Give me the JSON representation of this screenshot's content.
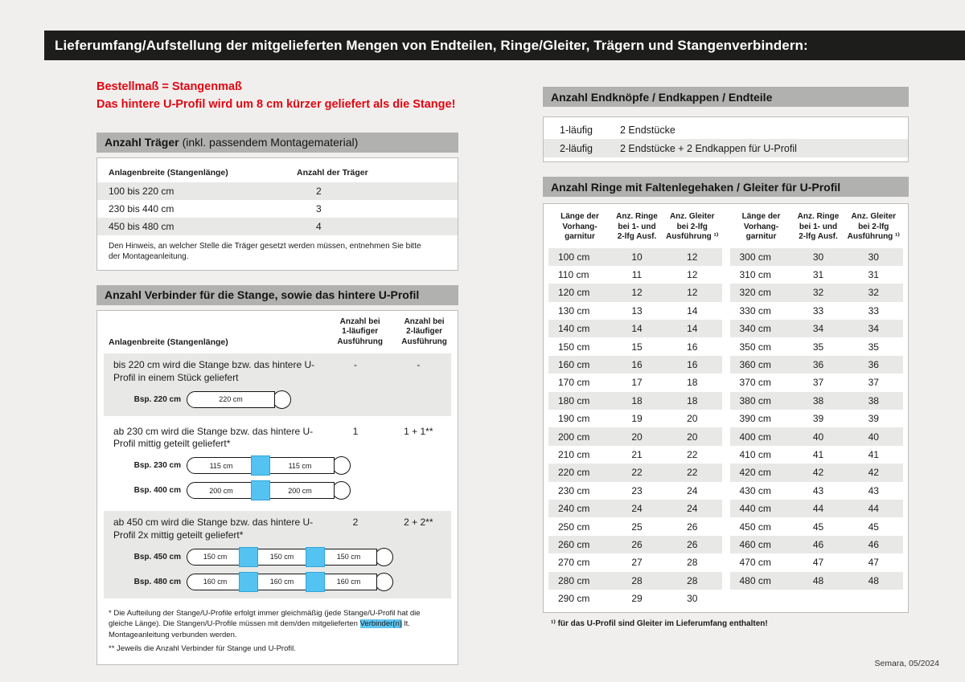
{
  "page": {
    "title": "Lieferumfang/Aufstellung der mitgelieferten Mengen von Endteilen, Ringe/Gleiter, Trägern und Stangenverbindern:",
    "footer": "Semara, 05/2024"
  },
  "notice": {
    "line1": "Bestellmaß = Stangenmaß",
    "line2": "Das hintere U-Profil wird um 8 cm kürzer geliefert als die Stange!"
  },
  "traeger": {
    "header_bold": "Anzahl Träger",
    "header_rest": "(inkl. passendem Montagematerial)",
    "col1": "Anlagenbreite (Stangenlänge)",
    "col2": "Anzahl der Träger",
    "rows": [
      {
        "range": "100 bis 220 cm",
        "count": "2"
      },
      {
        "range": "230 bis 440 cm",
        "count": "3"
      },
      {
        "range": "450 bis 480 cm",
        "count": "4"
      }
    ],
    "note": "Den Hinweis, an welcher Stelle die Träger gesetzt werden müssen, entnehmen Sie bitte der Montageanleitung."
  },
  "verbinder": {
    "header": "Anzahl Verbinder für die Stange, sowie das hintere U-Profil",
    "col1": "Anlagenbreite (Stangenlänge)",
    "col2": "Anzahl bei\n1-läufiger\nAusführung",
    "col3": "Anzahl bei\n2-läufiger\nAusführung",
    "sections": [
      {
        "text": "bis 220 cm wird die Stange bzw. das hintere U-Profil in einem Stück geliefert",
        "v1": "-",
        "v2": "-",
        "examples": [
          {
            "label": "Bsp. 220 cm",
            "segments": [
              "220 cm"
            ]
          }
        ]
      },
      {
        "text": "ab 230 cm wird die Stange bzw. das hintere U-Profil mittig geteilt geliefert*",
        "v1": "1",
        "v2": "1 + 1**",
        "examples": [
          {
            "label": "Bsp. 230 cm",
            "segments": [
              "115 cm",
              "115 cm"
            ]
          },
          {
            "label": "Bsp. 400 cm",
            "segments": [
              "200 cm",
              "200 cm"
            ]
          }
        ]
      },
      {
        "text": "ab 450 cm wird die Stange bzw. das hintere U-Profil 2x mittig geteilt geliefert*",
        "v1": "2",
        "v2": "2 + 2**",
        "examples": [
          {
            "label": "Bsp. 450 cm",
            "segments": [
              "150 cm",
              "150 cm",
              "150 cm"
            ]
          },
          {
            "label": "Bsp. 480 cm",
            "segments": [
              "160 cm",
              "160 cm",
              "160 cm"
            ]
          }
        ]
      }
    ],
    "footnote1_pre": "* Die Aufteilung der Stange/U-Profile erfolgt immer gleichmäßig (jede Stange/U-Profil hat die gleiche Länge). Die Stangen/U-Profile müssen mit dem/den mitgelieferten ",
    "footnote1_highlight": "Verbinder(n)",
    "footnote1_post": " lt. Montageanleitung verbunden werden.",
    "footnote2": "** Jeweils die Anzahl Verbinder für Stange und U-Profil."
  },
  "endteile": {
    "header": "Anzahl Endknöpfe / Endkappen / Endteile",
    "rows": [
      {
        "type": "1-läufig",
        "desc": "2 Endstücke"
      },
      {
        "type": "2-läufig",
        "desc": "2 Endstücke + 2 Endkappen für U-Profil"
      }
    ]
  },
  "ringe": {
    "header": "Anzahl Ringe mit Faltenlegehaken / Gleiter für U-Profil",
    "col1": "Länge der\nVorhang-\ngarnitur",
    "col2": "Anz. Ringe\nbei 1- und\n2-lfg Ausf.",
    "col3": "Anz. Gleiter\nbei 2-lfg\nAusführung ¹⁾",
    "left_rows": [
      [
        "100 cm",
        "10",
        "12"
      ],
      [
        "110 cm",
        "11",
        "12"
      ],
      [
        "120 cm",
        "12",
        "12"
      ],
      [
        "130 cm",
        "13",
        "14"
      ],
      [
        "140 cm",
        "14",
        "14"
      ],
      [
        "150 cm",
        "15",
        "16"
      ],
      [
        "160 cm",
        "16",
        "16"
      ],
      [
        "170 cm",
        "17",
        "18"
      ],
      [
        "180 cm",
        "18",
        "18"
      ],
      [
        "190 cm",
        "19",
        "20"
      ],
      [
        "200 cm",
        "20",
        "20"
      ],
      [
        "210 cm",
        "21",
        "22"
      ],
      [
        "220 cm",
        "22",
        "22"
      ],
      [
        "230 cm",
        "23",
        "24"
      ],
      [
        "240 cm",
        "24",
        "24"
      ],
      [
        "250 cm",
        "25",
        "26"
      ],
      [
        "260 cm",
        "26",
        "26"
      ],
      [
        "270 cm",
        "27",
        "28"
      ],
      [
        "280 cm",
        "28",
        "28"
      ],
      [
        "290 cm",
        "29",
        "30"
      ]
    ],
    "right_rows": [
      [
        "300 cm",
        "30",
        "30"
      ],
      [
        "310 cm",
        "31",
        "31"
      ],
      [
        "320 cm",
        "32",
        "32"
      ],
      [
        "330 cm",
        "33",
        "33"
      ],
      [
        "340 cm",
        "34",
        "34"
      ],
      [
        "350 cm",
        "35",
        "35"
      ],
      [
        "360 cm",
        "36",
        "36"
      ],
      [
        "370 cm",
        "37",
        "37"
      ],
      [
        "380 cm",
        "38",
        "38"
      ],
      [
        "390 cm",
        "39",
        "39"
      ],
      [
        "400 cm",
        "40",
        "40"
      ],
      [
        "410 cm",
        "41",
        "41"
      ],
      [
        "420 cm",
        "42",
        "42"
      ],
      [
        "430 cm",
        "43",
        "43"
      ],
      [
        "440 cm",
        "44",
        "44"
      ],
      [
        "450 cm",
        "45",
        "45"
      ],
      [
        "460 cm",
        "46",
        "46"
      ],
      [
        "470 cm",
        "47",
        "47"
      ],
      [
        "480 cm",
        "48",
        "48"
      ]
    ],
    "footnote": "¹⁾ für das U-Profil sind Gleiter im Lieferumfang enthalten!"
  }
}
